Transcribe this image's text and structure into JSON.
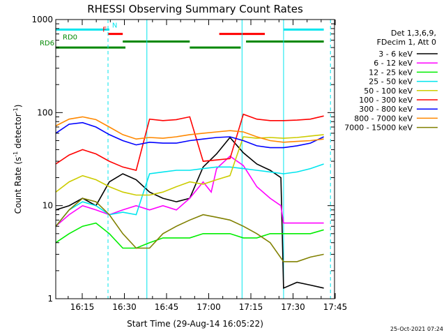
{
  "chart_data": {
    "type": "line",
    "title": "RHESSI Observing Summary Count Rates",
    "xlabel": "Start Time (29-Aug-14 16:05:22)",
    "ylabel_text": "Count Rate (s",
    "ylabel_sup1": "-1",
    "ylabel_mid": " detector",
    "ylabel_sup2": "-1",
    "ylabel_end": ")",
    "x_ticks": [
      "16:15",
      "16:30",
      "16:45",
      "17:00",
      "17:15",
      "17:30",
      "17:45"
    ],
    "y_ticks": [
      "1",
      "10",
      "100",
      "1000"
    ],
    "x_range_minutes": [
      0,
      100
    ],
    "y_range": [
      1,
      1000
    ],
    "yscale": "log",
    "legend_header": [
      "Det 1,3,6,9,",
      "FDecim 1, Att 0"
    ],
    "legend_position": "right",
    "footer_date": "25-Oct-2021 07:24",
    "flags": [
      {
        "label": "N",
        "color": "#00e5ee",
        "y": 780,
        "segments": [
          [
            0,
            20
          ],
          [
            85,
            100
          ]
        ]
      },
      {
        "label": "F",
        "color": "#ff0000",
        "y": 700,
        "segments": [
          [
            19.5,
            25
          ],
          [
            61,
            78
          ]
        ]
      },
      {
        "label": "RD0",
        "color": "#008800",
        "y": 580,
        "segments": [
          [
            25,
            50
          ],
          [
            71,
            100
          ]
        ]
      },
      {
        "label": "RD6",
        "color": "#008800",
        "y": 500,
        "segments": [
          [
            0,
            26
          ],
          [
            50,
            69
          ]
        ]
      }
    ],
    "vlines": [
      {
        "x": 19.5,
        "style": "dashed"
      },
      {
        "x": 34,
        "style": "solid"
      },
      {
        "x": 69.5,
        "style": "solid"
      },
      {
        "x": 85,
        "style": "solid"
      },
      {
        "x": 102.5,
        "style": "dashed"
      }
    ],
    "series": [
      {
        "name": "3 - 6 keV",
        "color": "#000000",
        "values": [
          [
            0,
            9
          ],
          [
            5,
            10
          ],
          [
            10,
            12
          ],
          [
            15,
            10
          ],
          [
            20,
            18
          ],
          [
            25,
            22
          ],
          [
            30,
            19
          ],
          [
            35,
            14
          ],
          [
            40,
            12
          ],
          [
            45,
            11
          ],
          [
            50,
            12
          ],
          [
            55,
            26
          ],
          [
            60,
            36
          ],
          [
            65,
            54
          ],
          [
            70,
            37
          ],
          [
            75,
            28
          ],
          [
            80,
            24
          ],
          [
            84,
            20
          ],
          [
            85,
            1.3
          ],
          [
            90,
            1.5
          ],
          [
            95,
            1.4
          ],
          [
            100,
            1.3
          ]
        ]
      },
      {
        "name": "6 - 12 keV",
        "color": "#ff00ff",
        "values": [
          [
            0,
            6
          ],
          [
            5,
            8
          ],
          [
            10,
            10
          ],
          [
            15,
            9
          ],
          [
            20,
            8
          ],
          [
            25,
            9
          ],
          [
            30,
            10
          ],
          [
            35,
            9
          ],
          [
            40,
            10
          ],
          [
            45,
            9
          ],
          [
            50,
            12
          ],
          [
            55,
            18
          ],
          [
            58,
            14
          ],
          [
            60,
            25
          ],
          [
            65,
            34
          ],
          [
            70,
            27
          ],
          [
            75,
            16
          ],
          [
            80,
            12
          ],
          [
            84,
            10
          ],
          [
            85,
            6.5
          ],
          [
            90,
            6.5
          ],
          [
            95,
            6.5
          ],
          [
            100,
            6.5
          ]
        ]
      },
      {
        "name": "12 - 25 keV",
        "color": "#00ee00",
        "values": [
          [
            0,
            4
          ],
          [
            5,
            5
          ],
          [
            10,
            6
          ],
          [
            15,
            6.5
          ],
          [
            20,
            5
          ],
          [
            25,
            3.5
          ],
          [
            30,
            3.5
          ],
          [
            35,
            4
          ],
          [
            40,
            4.5
          ],
          [
            45,
            4.5
          ],
          [
            50,
            4.5
          ],
          [
            55,
            5
          ],
          [
            60,
            5
          ],
          [
            65,
            5
          ],
          [
            70,
            4.5
          ],
          [
            75,
            4.5
          ],
          [
            80,
            5
          ],
          [
            85,
            5
          ],
          [
            90,
            5
          ],
          [
            95,
            5
          ],
          [
            100,
            5.5
          ]
        ]
      },
      {
        "name": "25 - 50 keV",
        "color": "#00e5ee",
        "values": [
          [
            0,
            6
          ],
          [
            5,
            9
          ],
          [
            10,
            11
          ],
          [
            15,
            10
          ],
          [
            20,
            8
          ],
          [
            25,
            8.5
          ],
          [
            30,
            8
          ],
          [
            35,
            22
          ],
          [
            40,
            23
          ],
          [
            45,
            24
          ],
          [
            50,
            24
          ],
          [
            55,
            25
          ],
          [
            60,
            26
          ],
          [
            65,
            26
          ],
          [
            70,
            25
          ],
          [
            75,
            24
          ],
          [
            80,
            23
          ],
          [
            85,
            22
          ],
          [
            90,
            23
          ],
          [
            95,
            25
          ],
          [
            100,
            28
          ]
        ]
      },
      {
        "name": "50 - 100 keV",
        "color": "#cccc00",
        "values": [
          [
            0,
            14
          ],
          [
            5,
            18
          ],
          [
            10,
            21
          ],
          [
            15,
            19
          ],
          [
            20,
            16
          ],
          [
            25,
            14
          ],
          [
            30,
            13
          ],
          [
            35,
            13
          ],
          [
            40,
            14
          ],
          [
            45,
            16
          ],
          [
            50,
            18
          ],
          [
            55,
            17
          ],
          [
            60,
            19
          ],
          [
            65,
            21
          ],
          [
            70,
            55
          ],
          [
            75,
            53
          ],
          [
            80,
            54
          ],
          [
            85,
            53
          ],
          [
            90,
            54
          ],
          [
            95,
            56
          ],
          [
            100,
            58
          ]
        ]
      },
      {
        "name": "100 - 300 keV",
        "color": "#ff0000",
        "values": [
          [
            0,
            28
          ],
          [
            5,
            35
          ],
          [
            10,
            40
          ],
          [
            15,
            36
          ],
          [
            20,
            30
          ],
          [
            25,
            26
          ],
          [
            30,
            24
          ],
          [
            35,
            85
          ],
          [
            40,
            82
          ],
          [
            45,
            84
          ],
          [
            50,
            90
          ],
          [
            55,
            30
          ],
          [
            60,
            31
          ],
          [
            65,
            32
          ],
          [
            70,
            96
          ],
          [
            75,
            85
          ],
          [
            80,
            82
          ],
          [
            85,
            82
          ],
          [
            90,
            83
          ],
          [
            95,
            85
          ],
          [
            100,
            92
          ]
        ]
      },
      {
        "name": "300 - 800 keV",
        "color": "#0000ff",
        "values": [
          [
            0,
            60
          ],
          [
            5,
            75
          ],
          [
            10,
            78
          ],
          [
            15,
            70
          ],
          [
            20,
            58
          ],
          [
            25,
            50
          ],
          [
            30,
            45
          ],
          [
            35,
            48
          ],
          [
            40,
            47
          ],
          [
            45,
            47
          ],
          [
            50,
            50
          ],
          [
            55,
            52
          ],
          [
            60,
            54
          ],
          [
            65,
            55
          ],
          [
            70,
            50
          ],
          [
            75,
            44
          ],
          [
            80,
            42
          ],
          [
            85,
            42
          ],
          [
            90,
            44
          ],
          [
            95,
            47
          ],
          [
            100,
            55
          ]
        ]
      },
      {
        "name": "800 - 7000 keV",
        "color": "#ff8800",
        "values": [
          [
            0,
            72
          ],
          [
            5,
            85
          ],
          [
            10,
            90
          ],
          [
            15,
            84
          ],
          [
            20,
            70
          ],
          [
            25,
            58
          ],
          [
            30,
            52
          ],
          [
            35,
            54
          ],
          [
            40,
            53
          ],
          [
            45,
            55
          ],
          [
            50,
            58
          ],
          [
            55,
            60
          ],
          [
            60,
            62
          ],
          [
            65,
            64
          ],
          [
            70,
            62
          ],
          [
            75,
            55
          ],
          [
            80,
            50
          ],
          [
            85,
            48
          ],
          [
            90,
            49
          ],
          [
            95,
            50
          ],
          [
            100,
            52
          ]
        ]
      },
      {
        "name": "7000 - 15000 keV",
        "color": "#808000",
        "values": [
          [
            0,
            6
          ],
          [
            5,
            9
          ],
          [
            10,
            12
          ],
          [
            15,
            11
          ],
          [
            20,
            8
          ],
          [
            25,
            5
          ],
          [
            30,
            3.5
          ],
          [
            35,
            3.5
          ],
          [
            40,
            5
          ],
          [
            45,
            6
          ],
          [
            50,
            7
          ],
          [
            55,
            8
          ],
          [
            60,
            7.5
          ],
          [
            65,
            7
          ],
          [
            70,
            6
          ],
          [
            75,
            5
          ],
          [
            80,
            4
          ],
          [
            85,
            2.5
          ],
          [
            90,
            2.5
          ],
          [
            95,
            2.8
          ],
          [
            100,
            3
          ]
        ]
      }
    ]
  }
}
